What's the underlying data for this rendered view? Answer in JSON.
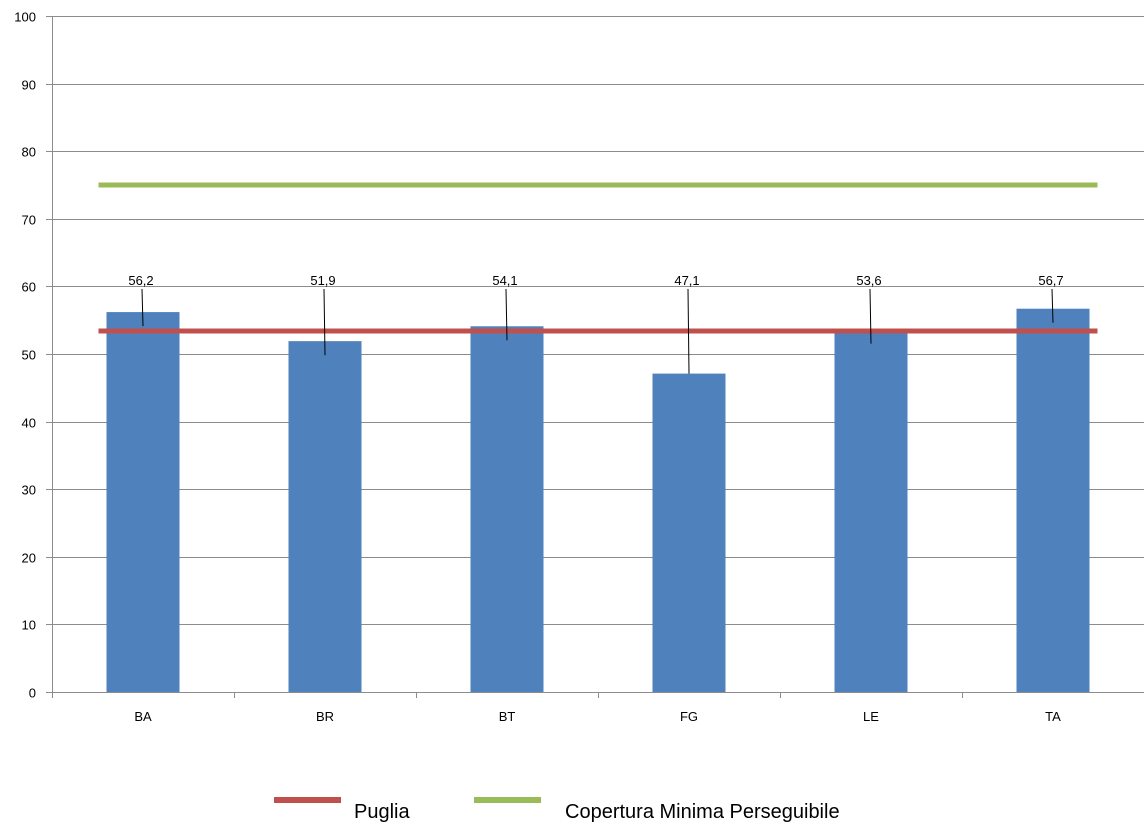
{
  "chart_data": {
    "type": "bar",
    "categories": [
      "BA",
      "BR",
      "BT",
      "FG",
      "LE",
      "TA"
    ],
    "values": [
      56.2,
      51.9,
      54.1,
      47.1,
      53.6,
      56.7
    ],
    "value_labels": [
      "56,2",
      "51,9",
      "54,1",
      "47,1",
      "53,6",
      "56,7"
    ],
    "ylim": [
      0,
      100
    ],
    "yticks": [
      0,
      10,
      20,
      30,
      40,
      50,
      60,
      70,
      80,
      90,
      100
    ],
    "grid": true,
    "reference_lines": [
      {
        "name": "Puglia",
        "value": 53.4,
        "color": "#c0504d"
      },
      {
        "name": "Copertura Minima Perseguibile",
        "value": 75,
        "color": "#9bbb59"
      }
    ],
    "legend": {
      "placement": "bottom-center",
      "entries": [
        "Puglia",
        "Copertura Minima Perseguibile"
      ]
    },
    "colors": {
      "bar": "#4f81bd",
      "grid": "#8c8c8c",
      "axis": "#8c8c8c",
      "text": "#000000"
    }
  }
}
